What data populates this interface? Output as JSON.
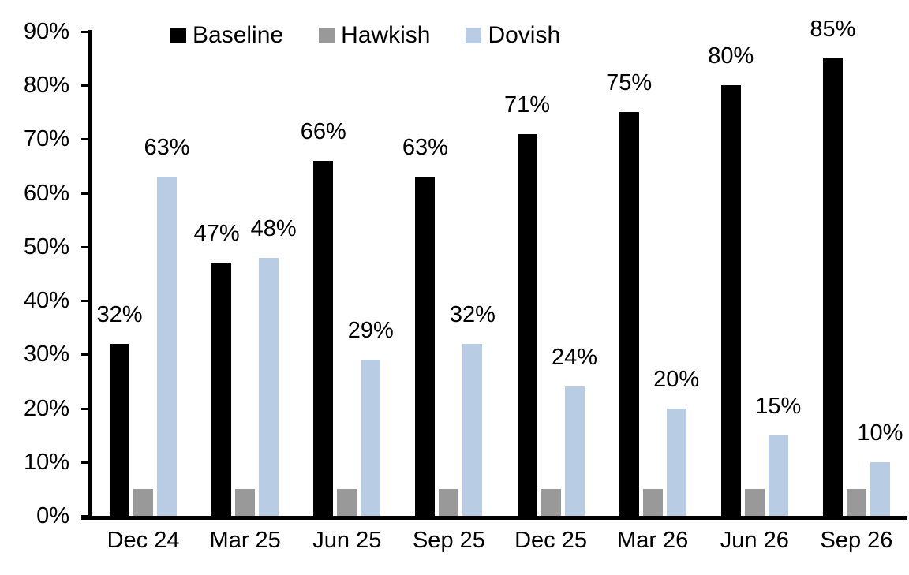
{
  "chart_data": {
    "type": "bar",
    "title": "",
    "xlabel": "",
    "ylabel": "",
    "categories": [
      "Dec 24",
      "Mar 25",
      "Jun 25",
      "Sep 25",
      "Dec 25",
      "Mar 26",
      "Jun 26",
      "Sep 26"
    ],
    "series": [
      {
        "name": "Baseline",
        "color": "#000000",
        "values": [
          32,
          47,
          66,
          63,
          71,
          75,
          80,
          85
        ],
        "data_labels": [
          "32%",
          "47%",
          "66%",
          "63%",
          "71%",
          "75%",
          "80%",
          "85%"
        ],
        "show_labels": true
      },
      {
        "name": "Hawkish",
        "color": "#999999",
        "values": [
          5,
          5,
          5,
          5,
          5,
          5,
          5,
          5
        ],
        "data_labels": [],
        "show_labels": false
      },
      {
        "name": "Dovish",
        "color": "#B8CCE4",
        "values": [
          63,
          48,
          29,
          32,
          24,
          20,
          15,
          10
        ],
        "data_labels": [
          "63%",
          "48%",
          "29%",
          "32%",
          "24%",
          "20%",
          "15%",
          "10%"
        ],
        "show_labels": true
      }
    ],
    "y_axis": {
      "min": 0,
      "max": 90,
      "step": 10,
      "tick_labels": [
        "0%",
        "10%",
        "20%",
        "30%",
        "40%",
        "50%",
        "60%",
        "70%",
        "80%",
        "90%"
      ]
    },
    "legend": {
      "position": "top",
      "entries": [
        "Baseline",
        "Hawkish",
        "Dovish"
      ]
    },
    "grid": false,
    "background": "#ffffff",
    "axis_color": "#000000",
    "text_color": "#000000"
  }
}
